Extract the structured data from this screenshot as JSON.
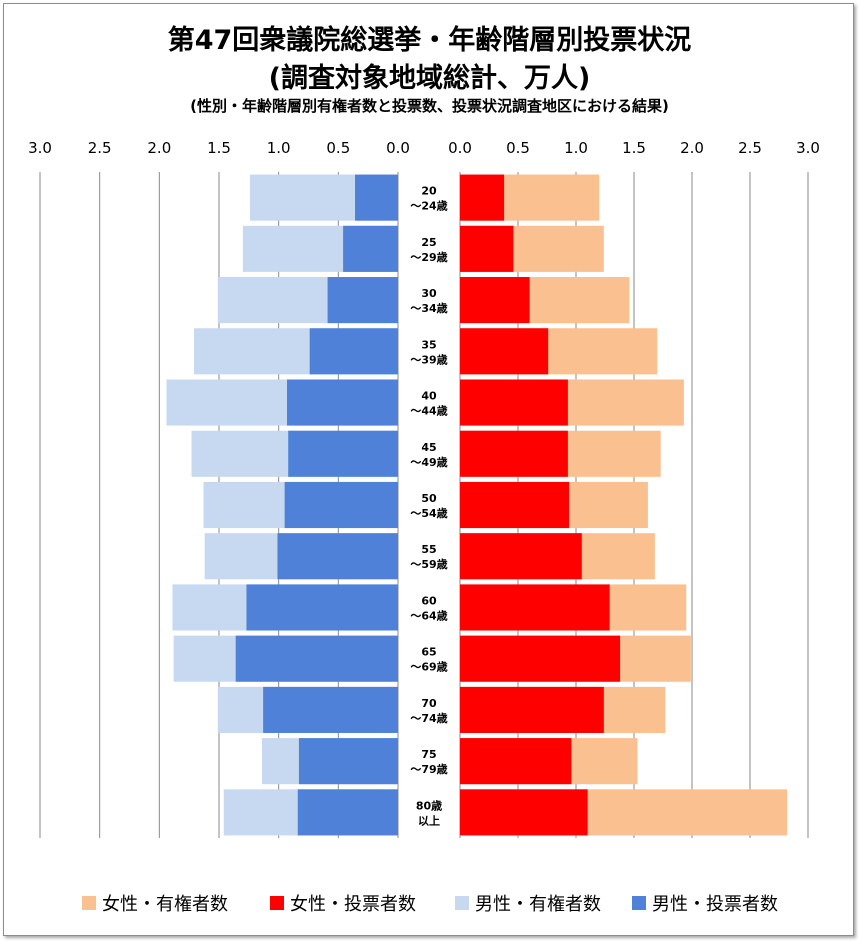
{
  "title": {
    "line1": "第47回衆議院総選挙・年齢階層別投票状況",
    "line2": "(調査対象地域総計、万人)",
    "line3": "(性別・年齢階層別有権者数と投票数、投票状況調査地区における結果)"
  },
  "colors": {
    "female_eligible": "#fac090",
    "female_votes": "#ff0000",
    "male_eligible": "#c6d9f1",
    "male_votes": "#4f81d9"
  },
  "chart_data": {
    "type": "bar",
    "orientation": "horizontal-butterfly",
    "axis_ticks_left": [
      "3.0",
      "2.5",
      "2.0",
      "1.5",
      "1.0",
      "0.5",
      "0.0"
    ],
    "axis_ticks_right": [
      "0.0",
      "0.5",
      "1.0",
      "1.5",
      "2.0",
      "2.5",
      "3.0"
    ],
    "xlim": [
      0,
      3.0
    ],
    "categories": [
      [
        "20",
        "～24歳"
      ],
      [
        "25",
        "～29歳"
      ],
      [
        "30",
        "～34歳"
      ],
      [
        "35",
        "～39歳"
      ],
      [
        "40",
        "～44歳"
      ],
      [
        "45",
        "～49歳"
      ],
      [
        "50",
        "～54歳"
      ],
      [
        "55",
        "～59歳"
      ],
      [
        "60",
        "～64歳"
      ],
      [
        "65",
        "～69歳"
      ],
      [
        "70",
        "～74歳"
      ],
      [
        "75",
        "～79歳"
      ],
      [
        "80歳",
        "以上"
      ]
    ],
    "series": [
      {
        "name": "女性・有権者数",
        "side": "right",
        "values": [
          1.2,
          1.24,
          1.46,
          1.7,
          1.93,
          1.73,
          1.62,
          1.68,
          1.95,
          1.99,
          1.77,
          1.53,
          2.82
        ]
      },
      {
        "name": "女性・投票者数",
        "side": "right",
        "values": [
          0.38,
          0.46,
          0.6,
          0.76,
          0.93,
          0.93,
          0.94,
          1.05,
          1.29,
          1.38,
          1.24,
          0.96,
          1.1
        ]
      },
      {
        "name": "男性・有権者数",
        "side": "left",
        "values": [
          1.24,
          1.3,
          1.51,
          1.71,
          1.94,
          1.73,
          1.63,
          1.62,
          1.89,
          1.88,
          1.51,
          1.14,
          1.46
        ]
      },
      {
        "name": "男性・投票者数",
        "side": "left",
        "values": [
          0.36,
          0.46,
          0.59,
          0.74,
          0.93,
          0.92,
          0.95,
          1.01,
          1.27,
          1.36,
          1.13,
          0.83,
          0.84
        ]
      }
    ],
    "legend_position": "bottom",
    "grid": true
  }
}
